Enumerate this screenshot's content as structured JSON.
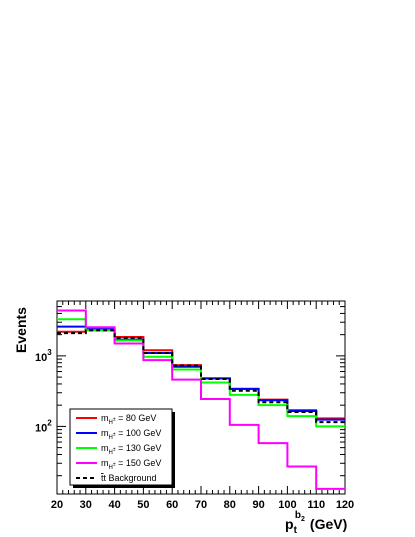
{
  "chart_data": {
    "type": "line",
    "ylabel": "Events",
    "xlabel": {
      "base": "p",
      "sub": "t",
      "sup_base": "b",
      "sup_sub": "2",
      "unit": "(GeV)"
    },
    "x_edges": [
      20,
      30,
      40,
      50,
      60,
      70,
      80,
      90,
      100,
      110,
      120
    ],
    "xlim": [
      20,
      120
    ],
    "ylim": [
      11,
      6000
    ],
    "yscale": "log",
    "x_ticks": [
      "20",
      "30",
      "40",
      "50",
      "60",
      "70",
      "80",
      "90",
      "100",
      "110",
      "120"
    ],
    "y_ticks": [
      {
        "value": 100,
        "mantissa": "10",
        "exponent": "2"
      },
      {
        "value": 1000,
        "mantissa": "10",
        "exponent": "3"
      }
    ],
    "legend_position": "bottom-left",
    "series": [
      {
        "label": {
          "prefix": "m",
          "sub": "H",
          "subsup": "±",
          "suffix": " = 80 GeV"
        },
        "color": "#ff0000",
        "dash": "solid",
        "values": [
          2200,
          2350,
          1850,
          1200,
          740,
          480,
          340,
          240,
          170,
          130
        ]
      },
      {
        "label": {
          "prefix": "m",
          "sub": "H",
          "subsup": "±",
          "suffix": " = 100 GeV"
        },
        "color": "#0000ff",
        "dash": "solid",
        "values": [
          2600,
          2400,
          1700,
          1100,
          700,
          480,
          340,
          235,
          165,
          125
        ]
      },
      {
        "label": {
          "prefix": "m",
          "sub": "H",
          "subsup": "±",
          "suffix": " = 130 GeV"
        },
        "color": "#00ff00",
        "dash": "solid",
        "values": [
          3300,
          2300,
          1650,
          970,
          640,
          420,
          280,
          200,
          140,
          100
        ]
      },
      {
        "label": {
          "prefix": "m",
          "sub": "H",
          "subsup": "±",
          "suffix": " = 150 GeV"
        },
        "color": "#ff00ff",
        "dash": "solid",
        "values": [
          4400,
          2550,
          1500,
          870,
          460,
          245,
          105,
          58,
          27,
          13
        ]
      },
      {
        "label": {
          "prefix": "t",
          "bar": true,
          "suffix": "t Background"
        },
        "color": "#000000",
        "dash": "dashed",
        "values": [
          2100,
          2300,
          1800,
          1100,
          730,
          470,
          320,
          220,
          160,
          115
        ]
      }
    ]
  }
}
